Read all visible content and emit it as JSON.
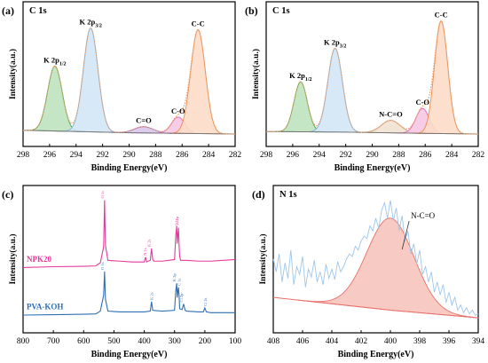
{
  "chart_data": [
    {
      "panel": "(a)",
      "type": "line",
      "title": "C 1s",
      "xlabel": "Binding Energy(eV)",
      "ylabel": "Intensity(a.u.)",
      "xlim": [
        298,
        282
      ],
      "x_reversed": true,
      "xticks": [
        298,
        296,
        294,
        292,
        290,
        288,
        286,
        284,
        282
      ],
      "background": [
        [
          298,
          0.03
        ],
        [
          294,
          0.02
        ],
        [
          290,
          0.01
        ],
        [
          282,
          0.0
        ]
      ],
      "peaks": [
        {
          "label": "K 2p1/2",
          "label_main": "K 2p",
          "label_sub": "1/2",
          "center": 295.6,
          "height": 0.52,
          "width": 0.55,
          "fill": "#bfe3bf",
          "stroke": "#45a845"
        },
        {
          "label": "K 2p3/2",
          "label_main": "K 2p",
          "label_sub": "3/2",
          "center": 292.9,
          "height": 0.83,
          "width": 0.55,
          "fill": "#d3e6f5",
          "stroke": "#7fb2de"
        },
        {
          "label": "C=O",
          "label_main": "C=O",
          "label_sub": "",
          "center": 288.9,
          "height": 0.05,
          "width": 0.7,
          "fill": "#d8c6ea",
          "stroke": "#9b59c8"
        },
        {
          "label": "C-O",
          "label_main": "C-O",
          "label_sub": "",
          "center": 286.3,
          "height": 0.13,
          "width": 0.5,
          "fill": "#f6c8e2",
          "stroke": "#e066b0"
        },
        {
          "label": "C-C",
          "label_main": "C-C",
          "label_sub": "",
          "center": 284.8,
          "height": 0.83,
          "width": 0.55,
          "fill": "#fcdcc8",
          "stroke": "#f08a4b"
        }
      ]
    },
    {
      "panel": "(b)",
      "type": "line",
      "title": "C 1s",
      "xlabel": "Binding Energy(eV)",
      "ylabel": "Intensity(a.u.)",
      "xlim": [
        298,
        282
      ],
      "x_reversed": true,
      "xticks": [
        298,
        296,
        294,
        292,
        290,
        288,
        286,
        284,
        282
      ],
      "background": [
        [
          298,
          0.02
        ],
        [
          292,
          0.015
        ],
        [
          286,
          0.005
        ],
        [
          282,
          0.0
        ]
      ],
      "peaks": [
        {
          "label": "K 2p1/2",
          "label_main": "K 2p",
          "label_sub": "1/2",
          "center": 295.4,
          "height": 0.4,
          "width": 0.5,
          "fill": "#bfe3bf",
          "stroke": "#45a845"
        },
        {
          "label": "K 2p3/2",
          "label_main": "K 2p",
          "label_sub": "3/2",
          "center": 292.8,
          "height": 0.67,
          "width": 0.55,
          "fill": "#d3e6f5",
          "stroke": "#7fb2de"
        },
        {
          "label": "N-C=O",
          "label_main": "N-C=O",
          "label_sub": "",
          "center": 288.6,
          "height": 0.1,
          "width": 0.7,
          "fill": "#f2e2d0",
          "stroke": "#c9a37a"
        },
        {
          "label": "C-O",
          "label_main": "C-O",
          "label_sub": "",
          "center": 286.2,
          "height": 0.2,
          "width": 0.5,
          "fill": "#f6c8e2",
          "stroke": "#e066b0"
        },
        {
          "label": "C-C",
          "label_main": "C-C",
          "label_sub": "",
          "center": 284.8,
          "height": 0.9,
          "width": 0.5,
          "fill": "#fcdcc8",
          "stroke": "#f08a4b"
        }
      ]
    },
    {
      "panel": "(c)",
      "type": "line",
      "title": "",
      "xlabel": "Binding Energy(eV)",
      "ylabel": "Intensity(a.u.)",
      "xlim": [
        800,
        100
      ],
      "x_reversed": true,
      "xticks": [
        800,
        700,
        600,
        500,
        400,
        300,
        200,
        100
      ],
      "series": [
        {
          "name": "NPK20",
          "color": "#e6399b",
          "offset": 0.6,
          "x": [
            800,
            700,
            600,
            560,
            545,
            534,
            531,
            528,
            520,
            480,
            440,
            400,
            396,
            392,
            388,
            380,
            376,
            372,
            368,
            340,
            300,
            296,
            293,
            291,
            289,
            287,
            285,
            283,
            280,
            260,
            220,
            180,
            140,
            100
          ],
          "y": [
            0.0,
            0.01,
            0.015,
            0.02,
            0.06,
            0.26,
            0.85,
            0.28,
            0.09,
            0.08,
            0.07,
            0.07,
            0.13,
            0.07,
            0.08,
            0.09,
            0.24,
            0.1,
            0.08,
            0.08,
            0.1,
            0.4,
            0.52,
            0.3,
            0.42,
            0.5,
            0.28,
            0.14,
            0.09,
            0.09,
            0.08,
            0.08,
            0.09,
            0.1
          ],
          "annotations": [
            "O 1s",
            "N 1s",
            "K 2s",
            "K 2p",
            "C 1s"
          ]
        },
        {
          "name": "PVA-KOH",
          "color": "#2e6fb5",
          "offset": 0.0,
          "x": [
            800,
            700,
            600,
            560,
            545,
            534,
            531,
            528,
            520,
            480,
            440,
            400,
            380,
            376,
            372,
            340,
            300,
            296,
            293,
            291,
            289,
            287,
            285,
            283,
            275,
            270,
            265,
            260,
            220,
            205,
            200,
            195,
            180,
            140,
            100
          ],
          "y": [
            0.0,
            0.005,
            0.01,
            0.015,
            0.05,
            0.25,
            0.55,
            0.2,
            0.05,
            0.04,
            0.04,
            0.04,
            0.05,
            0.17,
            0.06,
            0.05,
            0.06,
            0.3,
            0.4,
            0.22,
            0.3,
            0.35,
            0.25,
            0.08,
            0.07,
            0.14,
            0.06,
            0.05,
            0.04,
            0.04,
            0.09,
            0.04,
            0.03,
            0.03,
            0.03
          ],
          "annotations": [
            "O 1s",
            "K 2s",
            "K 2p",
            "C 1s",
            "Cl 2p",
            "Cl 2s"
          ]
        }
      ]
    },
    {
      "panel": "(d)",
      "type": "line",
      "title": "N 1s",
      "xlabel": "Binding Energy(eV)",
      "ylabel": "Intensity(a.u.)",
      "xlim": [
        408,
        394
      ],
      "x_reversed": true,
      "xticks": [
        408,
        406,
        404,
        402,
        400,
        398,
        396,
        394
      ],
      "baseline": [
        [
          408,
          0.18
        ],
        [
          404,
          0.13
        ],
        [
          400,
          0.08
        ],
        [
          396,
          0.04
        ],
        [
          394,
          0.02
        ]
      ],
      "peaks": [
        {
          "label": "N-C=O",
          "label_main": "N-C=O",
          "label_sub": "",
          "center": 400.0,
          "height": 0.72,
          "width": 1.6,
          "fill": "#f6c5bd",
          "stroke": "#e8706a"
        }
      ],
      "raw": {
        "color": "#9ec6ea",
        "x": [
          408.0,
          407.8,
          407.6,
          407.4,
          407.2,
          407.0,
          406.8,
          406.6,
          406.4,
          406.2,
          406.0,
          405.8,
          405.6,
          405.4,
          405.2,
          405.0,
          404.8,
          404.6,
          404.4,
          404.2,
          404.0,
          403.8,
          403.6,
          403.4,
          403.2,
          403.0,
          402.8,
          402.6,
          402.4,
          402.2,
          402.0,
          401.8,
          401.6,
          401.4,
          401.2,
          401.0,
          400.8,
          400.6,
          400.4,
          400.2,
          400.0,
          399.8,
          399.6,
          399.4,
          399.2,
          399.0,
          398.8,
          398.6,
          398.4,
          398.2,
          398.0,
          397.8,
          397.6,
          397.4,
          397.2,
          397.0,
          396.8,
          396.6,
          396.4,
          396.2,
          396.0,
          395.8,
          395.6,
          395.4,
          395.2,
          395.0,
          394.8,
          394.6,
          394.4,
          394.2,
          394.0
        ],
        "y": [
          0.48,
          0.38,
          0.52,
          0.3,
          0.45,
          0.33,
          0.55,
          0.28,
          0.42,
          0.36,
          0.5,
          0.26,
          0.4,
          0.34,
          0.47,
          0.3,
          0.38,
          0.28,
          0.44,
          0.33,
          0.4,
          0.32,
          0.46,
          0.38,
          0.42,
          0.48,
          0.52,
          0.5,
          0.58,
          0.55,
          0.62,
          0.66,
          0.64,
          0.74,
          0.7,
          0.8,
          0.72,
          0.86,
          0.92,
          0.8,
          0.94,
          0.78,
          0.88,
          0.7,
          0.82,
          0.62,
          0.7,
          0.52,
          0.6,
          0.44,
          0.55,
          0.36,
          0.42,
          0.3,
          0.38,
          0.22,
          0.3,
          0.2,
          0.28,
          0.14,
          0.22,
          0.12,
          0.18,
          0.08,
          0.12,
          0.06,
          0.1,
          0.05,
          0.08,
          0.04,
          0.05
        ]
      }
    }
  ]
}
